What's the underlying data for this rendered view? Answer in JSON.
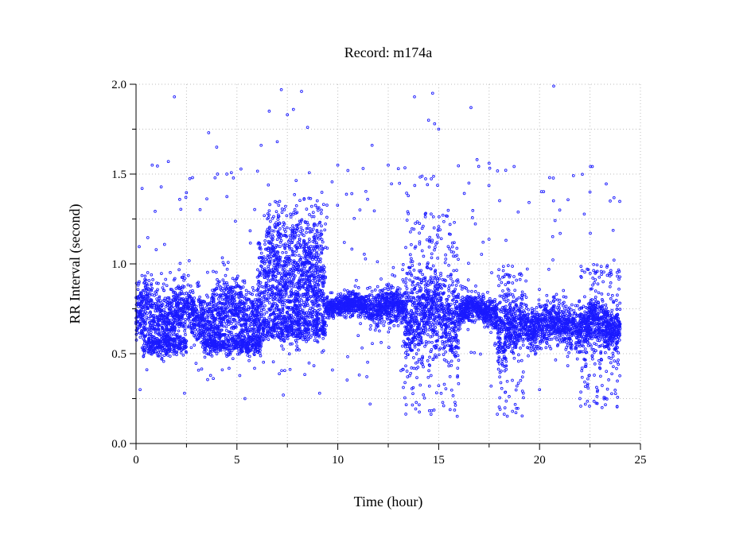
{
  "chart_data": {
    "type": "scatter",
    "title": "Record:  m174a",
    "xlabel": "Time (hour)",
    "ylabel": "RR Interval (second)",
    "xlim": [
      0,
      25
    ],
    "ylim": [
      0,
      2.0
    ],
    "x_ticks": [
      "0",
      "5",
      "10",
      "15",
      "20",
      "25"
    ],
    "y_ticks": [
      "0.0",
      "0.5",
      "1.0",
      "1.5",
      "2.0"
    ],
    "grid": true,
    "marker_color": "#1a1aff",
    "segments": [
      {
        "x_start": 0.0,
        "x_end": 2.5,
        "rr_center": 0.72,
        "rr_spread": 0.09
      },
      {
        "x_start": 2.5,
        "x_end": 3.5,
        "rr_center": 0.7,
        "rr_spread": 0.07
      },
      {
        "x_start": 3.5,
        "x_end": 6.0,
        "rr_center": 0.72,
        "rr_spread": 0.1
      },
      {
        "x_start": 6.0,
        "x_end": 9.4,
        "rr_center": 0.85,
        "rr_spread": 0.14
      },
      {
        "x_start": 9.4,
        "x_end": 11.5,
        "rr_center": 0.77,
        "rr_spread": 0.03
      },
      {
        "x_start": 11.5,
        "x_end": 13.3,
        "rr_center": 0.76,
        "rr_spread": 0.05
      },
      {
        "x_start": 13.3,
        "x_end": 16.0,
        "rr_center": 0.72,
        "rr_spread": 0.12
      },
      {
        "x_start": 16.0,
        "x_end": 17.9,
        "rr_center": 0.74,
        "rr_spread": 0.04
      },
      {
        "x_start": 17.9,
        "x_end": 19.0,
        "rr_center": 0.62,
        "rr_spread": 0.09
      },
      {
        "x_start": 19.0,
        "x_end": 24.0,
        "rr_center": 0.66,
        "rr_spread": 0.06
      }
    ],
    "secondary_bands": [
      {
        "x_start": 3.3,
        "x_end": 6.2,
        "rr_center": 0.55,
        "rr_spread": 0.03
      },
      {
        "x_start": 6.0,
        "x_end": 9.4,
        "rr_center": 0.65,
        "rr_spread": 0.04
      },
      {
        "x_start": 6.5,
        "x_end": 9.3,
        "rr_center": 1.1,
        "rr_spread": 0.12
      },
      {
        "x_start": 0.3,
        "x_end": 2.5,
        "rr_center": 0.55,
        "rr_spread": 0.03
      }
    ],
    "scattered_bursts": [
      {
        "x_start": 13.2,
        "x_end": 16.0,
        "rr_min": 0.15,
        "rr_max": 1.3
      },
      {
        "x_start": 17.9,
        "x_end": 19.2,
        "rr_min": 0.15,
        "rr_max": 1.0
      },
      {
        "x_start": 22.0,
        "x_end": 24.0,
        "rr_min": 0.2,
        "rr_max": 1.0
      }
    ],
    "outliers": [
      [
        1.9,
        1.93
      ],
      [
        7.2,
        1.97
      ],
      [
        8.2,
        1.96
      ],
      [
        14.7,
        1.95
      ],
      [
        20.7,
        1.99
      ],
      [
        6.6,
        1.85
      ],
      [
        7.5,
        1.83
      ],
      [
        7.8,
        1.86
      ],
      [
        13.8,
        1.93
      ],
      [
        16.6,
        1.87
      ],
      [
        3.6,
        1.73
      ],
      [
        4.0,
        1.65
      ],
      [
        6.2,
        1.66
      ],
      [
        7.0,
        1.68
      ],
      [
        8.5,
        1.76
      ],
      [
        11.7,
        1.66
      ],
      [
        15.0,
        1.75
      ],
      [
        14.5,
        1.8
      ],
      [
        14.8,
        1.78
      ],
      [
        16.9,
        1.58
      ],
      [
        0.3,
        1.42
      ],
      [
        0.8,
        1.55
      ],
      [
        1.6,
        1.57
      ],
      [
        2.8,
        1.48
      ],
      [
        4.5,
        1.5
      ],
      [
        10.0,
        1.55
      ],
      [
        10.5,
        1.52
      ],
      [
        12.5,
        1.55
      ],
      [
        13.0,
        1.53
      ],
      [
        16.5,
        1.45
      ],
      [
        17.5,
        1.56
      ],
      [
        20.5,
        1.48
      ],
      [
        22.5,
        1.4
      ],
      [
        23.5,
        1.35
      ],
      [
        21.0,
        1.3
      ],
      [
        0.2,
        0.3
      ],
      [
        2.4,
        0.28
      ],
      [
        5.4,
        0.25
      ],
      [
        7.3,
        0.27
      ],
      [
        9.1,
        0.28
      ],
      [
        11.6,
        0.22
      ],
      [
        23.1,
        0.2
      ],
      [
        22.0,
        0.25
      ],
      [
        20.0,
        0.3
      ],
      [
        17.6,
        0.32
      ]
    ]
  }
}
